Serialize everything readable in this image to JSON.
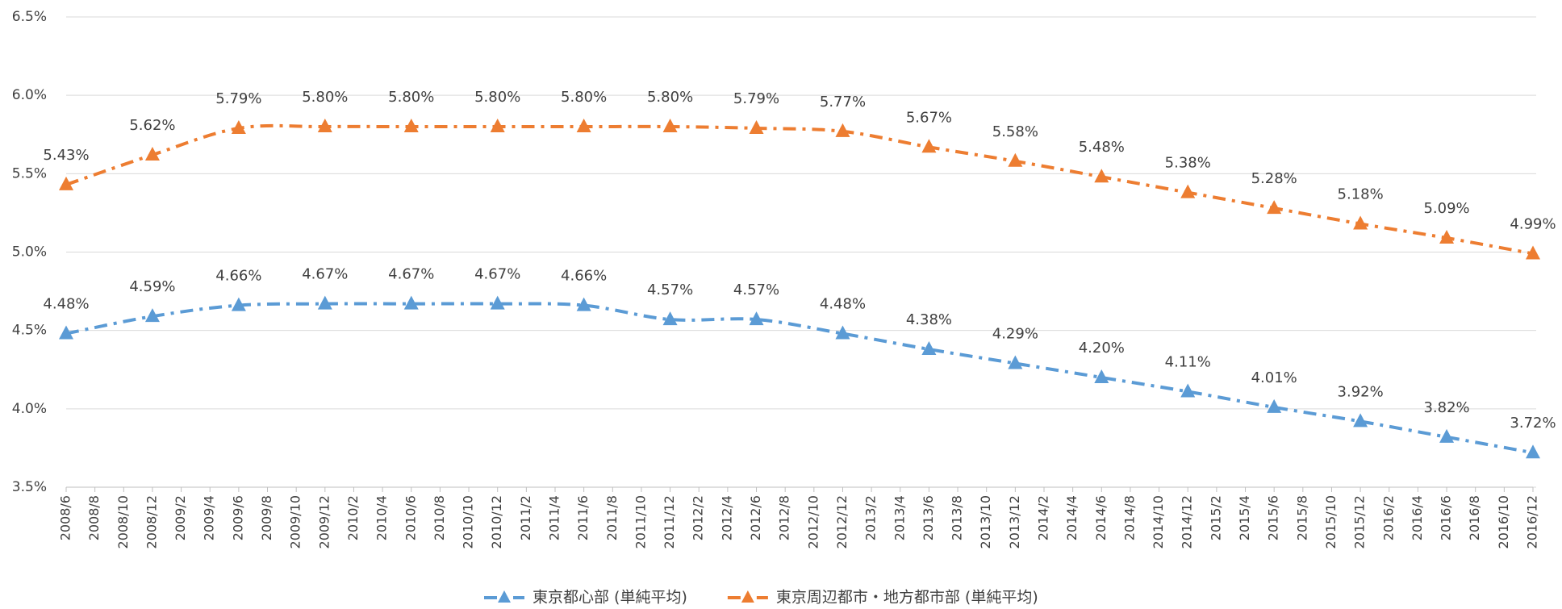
{
  "chart_data": {
    "type": "line",
    "x_labels": [
      "2008/6",
      "2008/8",
      "2008/10",
      "2008/12",
      "2009/2",
      "2009/4",
      "2009/6",
      "2009/8",
      "2009/10",
      "2009/12",
      "2010/2",
      "2010/4",
      "2010/6",
      "2010/8",
      "2010/10",
      "2010/12",
      "2011/2",
      "2011/4",
      "2011/6",
      "2011/8",
      "2011/10",
      "2011/12",
      "2012/2",
      "2012/4",
      "2012/6",
      "2012/8",
      "2012/10",
      "2012/12",
      "2013/2",
      "2013/4",
      "2013/6",
      "2013/8",
      "2013/10",
      "2013/12",
      "2014/2",
      "2014/4",
      "2014/6",
      "2014/8",
      "2014/10",
      "2014/12",
      "2015/2",
      "2015/4",
      "2015/6",
      "2015/8",
      "2015/10",
      "2015/12",
      "2016/2",
      "2016/4",
      "2016/6",
      "2016/8",
      "2016/10",
      "2016/12"
    ],
    "categories": [
      "2008/6",
      "2008/12",
      "2009/6",
      "2009/12",
      "2010/6",
      "2010/12",
      "2011/6",
      "2011/12",
      "2012/6",
      "2012/12",
      "2013/6",
      "2013/12",
      "2014/6",
      "2014/12",
      "2015/6",
      "2015/12",
      "2016/6",
      "2016/12"
    ],
    "series": [
      {
        "name": "東京都心部 (単純平均)",
        "color": "#5b9bd5",
        "values": [
          4.48,
          4.59,
          4.66,
          4.67,
          4.67,
          4.67,
          4.66,
          4.57,
          4.57,
          4.48,
          4.38,
          4.29,
          4.2,
          4.11,
          4.01,
          3.92,
          3.82,
          3.72
        ],
        "value_labels": [
          "4.48%",
          "4.59%",
          "4.66%",
          "4.67%",
          "4.67%",
          "4.67%",
          "4.66%",
          "4.57%",
          "4.57%",
          "4.48%",
          "4.38%",
          "4.29%",
          "4.20%",
          "4.11%",
          "4.01%",
          "3.92%",
          "3.82%",
          "3.72%"
        ]
      },
      {
        "name": "東京周辺都市・地方都市部 (単純平均)",
        "color": "#ed7d31",
        "values": [
          5.43,
          5.62,
          5.79,
          5.8,
          5.8,
          5.8,
          5.8,
          5.8,
          5.79,
          5.77,
          5.67,
          5.58,
          5.48,
          5.38,
          5.28,
          5.18,
          5.09,
          4.99
        ],
        "value_labels": [
          "5.43%",
          "5.62%",
          "5.79%",
          "5.80%",
          "5.80%",
          "5.80%",
          "5.80%",
          "5.80%",
          "5.79%",
          "5.77%",
          "5.67%",
          "5.58%",
          "5.48%",
          "5.38%",
          "5.28%",
          "5.18%",
          "5.09%",
          "4.99%"
        ]
      }
    ],
    "ylim": [
      3.5,
      6.5
    ],
    "yticks": [
      {
        "value": 3.5,
        "label": "3.5%"
      },
      {
        "value": 4.0,
        "label": "4.0%"
      },
      {
        "value": 4.5,
        "label": "4.5%"
      },
      {
        "value": 5.0,
        "label": "5.0%"
      },
      {
        "value": 5.5,
        "label": "5.5%"
      },
      {
        "value": 6.0,
        "label": "6.0%"
      },
      {
        "value": 6.5,
        "label": "6.5%"
      }
    ],
    "grid": true,
    "legend": "bottom"
  }
}
